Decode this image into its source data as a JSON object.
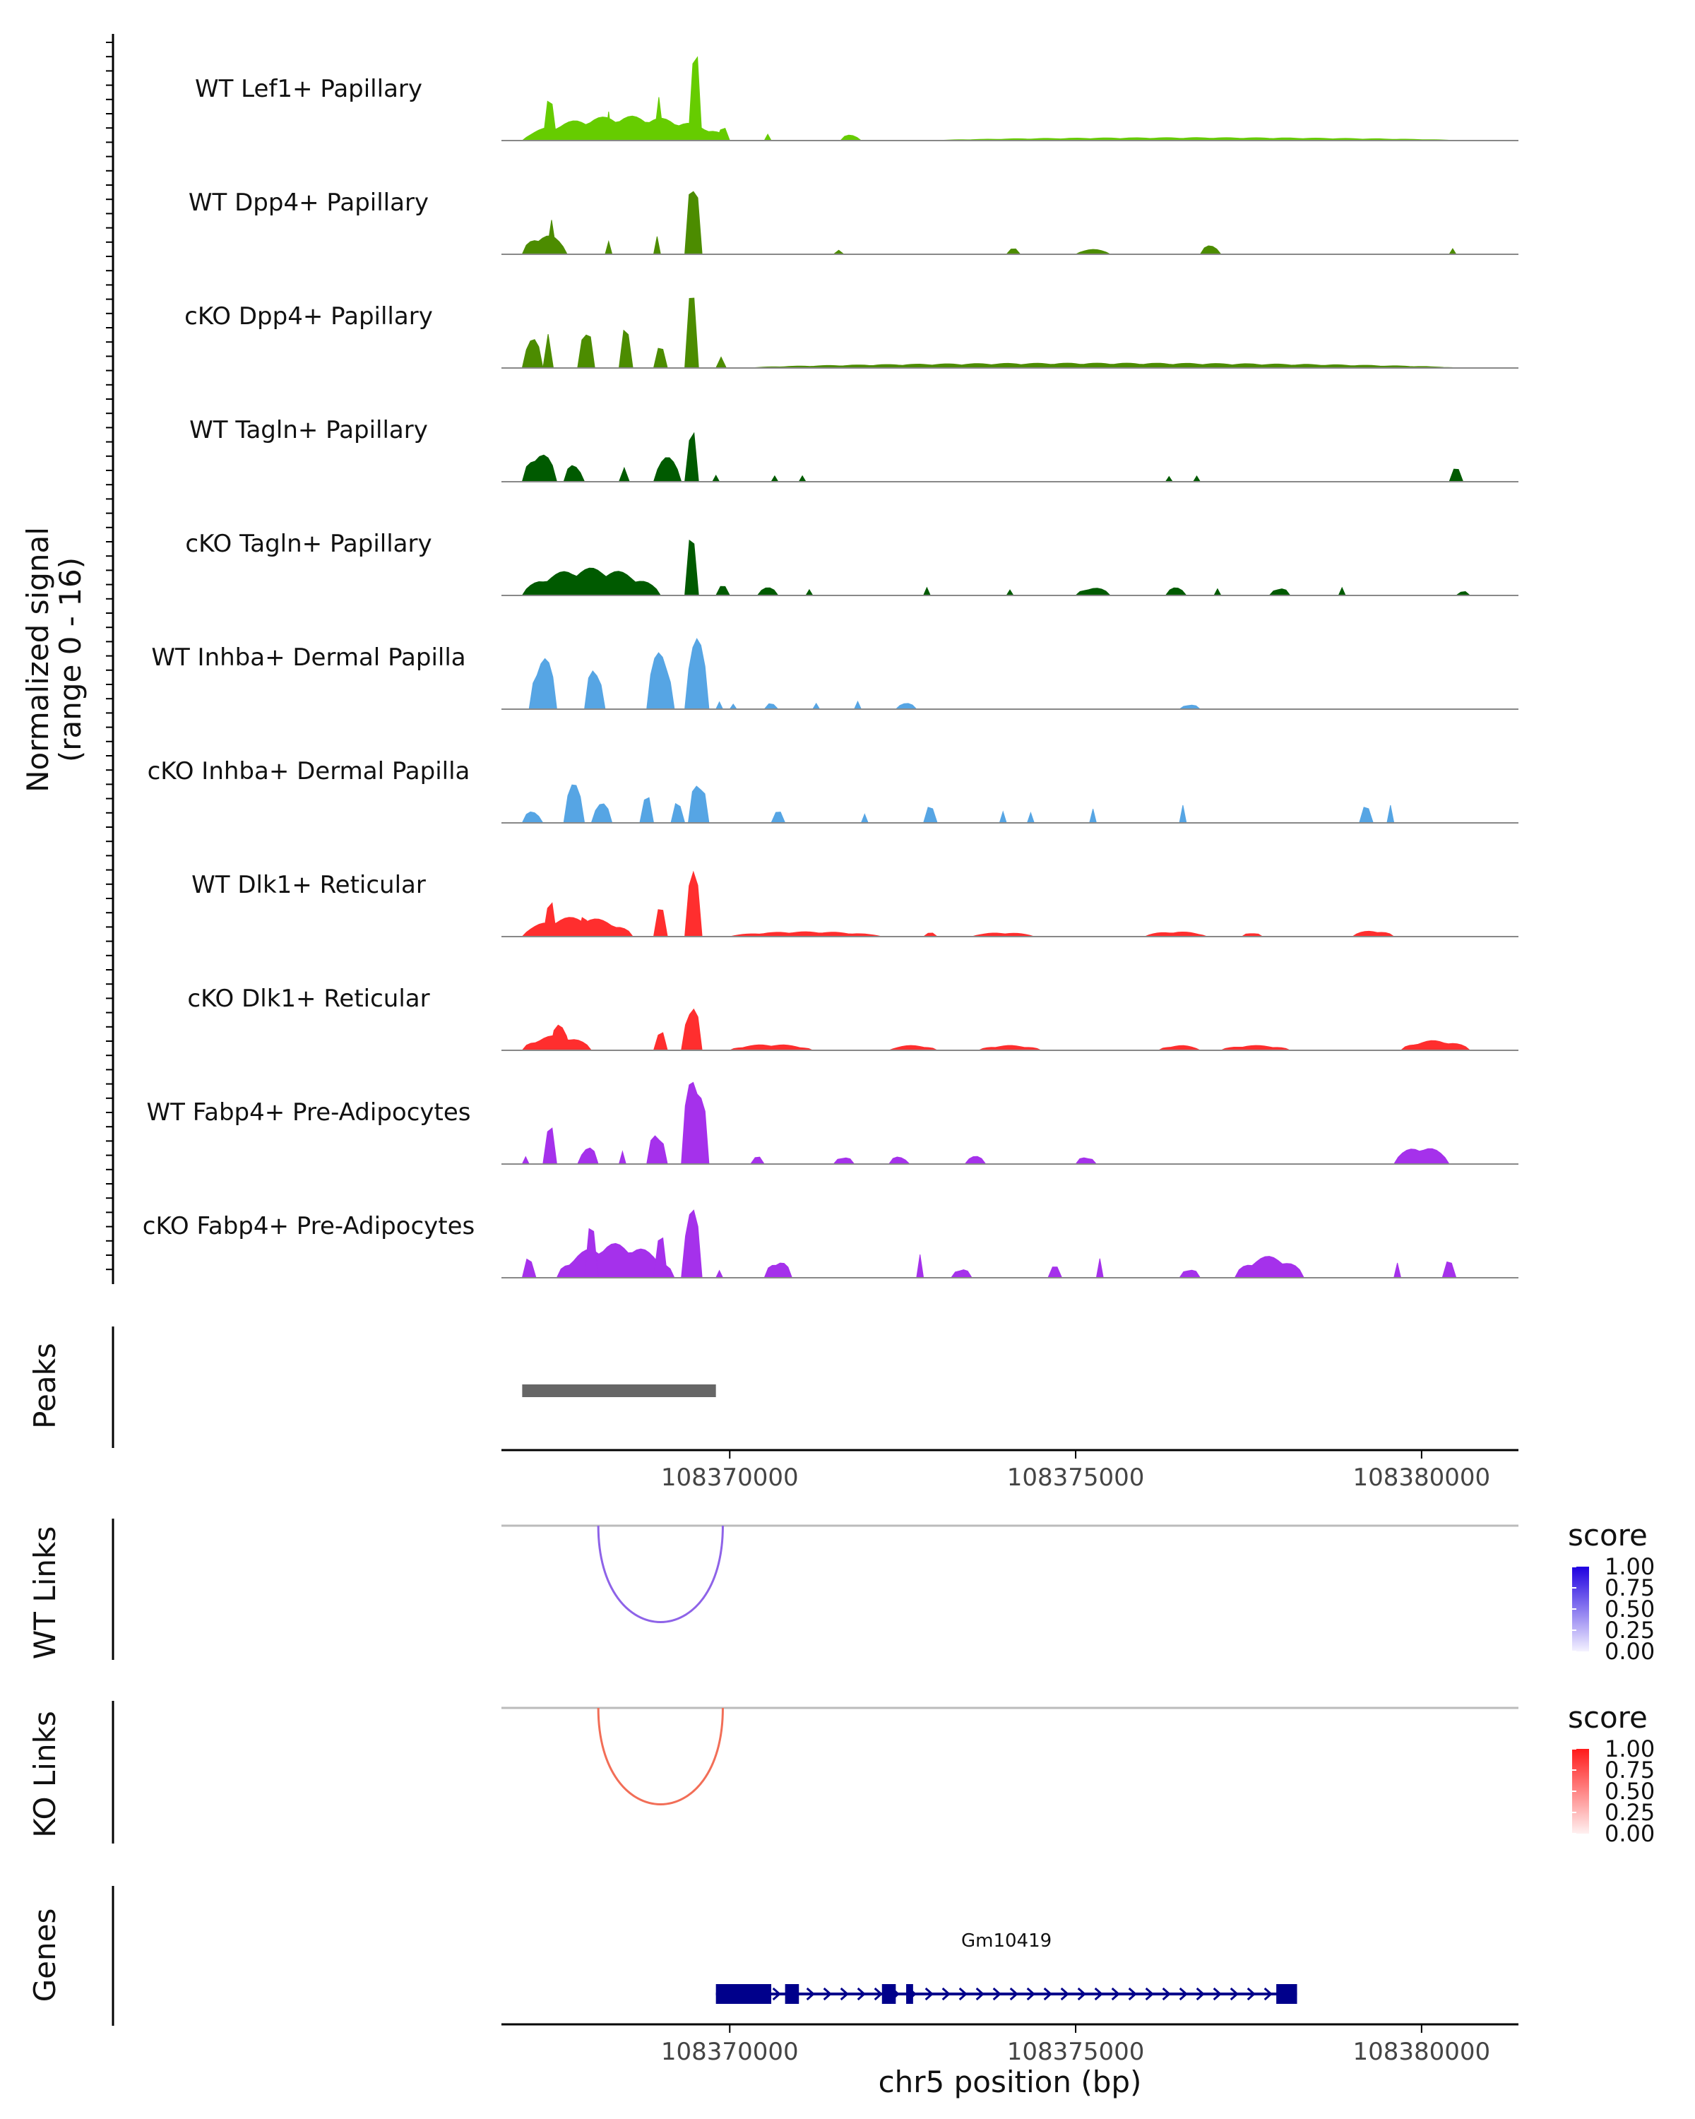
{
  "chart_data": {
    "type": "area",
    "title": "",
    "ylabel": "Normalized signal\n(range 0 - 16)",
    "ylim": [
      0,
      16
    ],
    "xlabel": "chr5 position (bp)",
    "xlim": [
      108366700,
      108381400
    ],
    "x_ticks": [
      108370000,
      108375000,
      108380000
    ],
    "x_tick_labels": [
      "108370000",
      "108375000",
      "108380000"
    ],
    "tracks": [
      {
        "name": "WT Lef1+ Papillary",
        "color": "#66CC00",
        "peaks": [
          [
            108367000,
            108370000,
            0.25
          ],
          [
            108367300,
            108367500,
            0.55
          ],
          [
            108368200,
            108368300,
            0.3
          ],
          [
            108368900,
            108369050,
            0.45
          ],
          [
            108369400,
            108369600,
            0.95
          ],
          [
            108369800,
            108370000,
            0.15
          ],
          [
            108370500,
            108370600,
            0.08
          ],
          [
            108371600,
            108371900,
            0.06
          ],
          [
            108373000,
            108380500,
            0.03
          ]
        ]
      },
      {
        "name": "WT Dpp4+ Papillary",
        "color": "#4C8C00",
        "peaks": [
          [
            108367000,
            108367650,
            0.2
          ],
          [
            108367350,
            108367500,
            0.35
          ],
          [
            108368200,
            108368300,
            0.15
          ],
          [
            108368900,
            108369000,
            0.25
          ],
          [
            108369350,
            108369600,
            0.88
          ],
          [
            108371500,
            108371650,
            0.05
          ],
          [
            108374000,
            108374200,
            0.06
          ],
          [
            108375000,
            108375500,
            0.05
          ],
          [
            108376800,
            108377100,
            0.09
          ],
          [
            108380400,
            108380500,
            0.06
          ]
        ]
      },
      {
        "name": "cKO Dpp4+ Papillary",
        "color": "#4C8C00",
        "peaks": [
          [
            108367000,
            108367300,
            0.3
          ],
          [
            108367300,
            108367450,
            0.45
          ],
          [
            108367800,
            108368050,
            0.45
          ],
          [
            108368400,
            108368600,
            0.45
          ],
          [
            108368900,
            108369100,
            0.22
          ],
          [
            108369350,
            108369550,
            0.78
          ],
          [
            108369800,
            108369950,
            0.12
          ],
          [
            108370300,
            108380500,
            0.05
          ]
        ]
      },
      {
        "name": "WT Tagln+ Papillary",
        "color": "#005A00",
        "peaks": [
          [
            108367000,
            108367500,
            0.3
          ],
          [
            108367600,
            108367900,
            0.18
          ],
          [
            108368400,
            108368550,
            0.15
          ],
          [
            108368900,
            108369300,
            0.25
          ],
          [
            108369350,
            108369550,
            0.65
          ],
          [
            108369750,
            108369850,
            0.08
          ],
          [
            108370600,
            108370700,
            0.06
          ],
          [
            108371000,
            108371100,
            0.06
          ],
          [
            108376300,
            108376400,
            0.06
          ],
          [
            108376700,
            108376800,
            0.06
          ],
          [
            108380400,
            108380600,
            0.14
          ]
        ]
      },
      {
        "name": "cKO Tagln+ Papillary",
        "color": "#005A00",
        "peaks": [
          [
            108367000,
            108369000,
            0.28
          ],
          [
            108369350,
            108369550,
            0.62
          ],
          [
            108369800,
            108370000,
            0.1
          ],
          [
            108370400,
            108370700,
            0.08
          ],
          [
            108371100,
            108371200,
            0.08
          ],
          [
            108372800,
            108372900,
            0.08
          ],
          [
            108374000,
            108374100,
            0.07
          ],
          [
            108375000,
            108375500,
            0.08
          ],
          [
            108376300,
            108376600,
            0.08
          ],
          [
            108377000,
            108377100,
            0.08
          ],
          [
            108377800,
            108378100,
            0.08
          ],
          [
            108378800,
            108378900,
            0.08
          ],
          [
            108380500,
            108380700,
            0.05
          ]
        ]
      },
      {
        "name": "WT Inhba+ Dermal Papilla",
        "color": "#56A5E4",
        "peaks": [
          [
            108367100,
            108367500,
            0.55
          ],
          [
            108367900,
            108368200,
            0.45
          ],
          [
            108368800,
            108369200,
            0.6
          ],
          [
            108369350,
            108369700,
            0.72
          ],
          [
            108369800,
            108369900,
            0.1
          ],
          [
            108370000,
            108370100,
            0.07
          ],
          [
            108370500,
            108370700,
            0.07
          ],
          [
            108371200,
            108371300,
            0.06
          ],
          [
            108371800,
            108371900,
            0.08
          ],
          [
            108372400,
            108372700,
            0.06
          ],
          [
            108376500,
            108376800,
            0.05
          ]
        ]
      },
      {
        "name": "cKO Inhba+ Dermal Papilla",
        "color": "#56A5E4",
        "peaks": [
          [
            108367000,
            108367300,
            0.12
          ],
          [
            108367600,
            108367900,
            0.4
          ],
          [
            108368000,
            108368300,
            0.2
          ],
          [
            108368700,
            108368900,
            0.35
          ],
          [
            108369150,
            108369350,
            0.25
          ],
          [
            108369400,
            108369700,
            0.48
          ],
          [
            108370600,
            108370800,
            0.12
          ],
          [
            108371900,
            108372000,
            0.12
          ],
          [
            108372800,
            108373000,
            0.18
          ],
          [
            108373900,
            108374000,
            0.12
          ],
          [
            108374300,
            108374400,
            0.12
          ],
          [
            108375200,
            108375300,
            0.18
          ],
          [
            108376500,
            108376600,
            0.18
          ],
          [
            108379100,
            108379300,
            0.18
          ],
          [
            108379500,
            108379600,
            0.18
          ]
        ]
      },
      {
        "name": "WT Dlk1+ Reticular",
        "color": "#FF2E2E",
        "peaks": [
          [
            108367000,
            108368600,
            0.2
          ],
          [
            108367300,
            108367500,
            0.45
          ],
          [
            108367800,
            108368000,
            0.25
          ],
          [
            108368900,
            108369100,
            0.3
          ],
          [
            108369350,
            108369600,
            0.66
          ],
          [
            108370000,
            108372200,
            0.05
          ],
          [
            108372800,
            108373000,
            0.04
          ],
          [
            108373500,
            108374400,
            0.04
          ],
          [
            108376000,
            108376900,
            0.05
          ],
          [
            108377400,
            108377700,
            0.04
          ],
          [
            108379000,
            108379600,
            0.06
          ]
        ]
      },
      {
        "name": "cKO Dlk1+ Reticular",
        "color": "#FF2E2E",
        "peaks": [
          [
            108367000,
            108368000,
            0.15
          ],
          [
            108367400,
            108367700,
            0.28
          ],
          [
            108368900,
            108369100,
            0.22
          ],
          [
            108369300,
            108369600,
            0.48
          ],
          [
            108370000,
            108371200,
            0.06
          ],
          [
            108372300,
            108373000,
            0.05
          ],
          [
            108373600,
            108374500,
            0.05
          ],
          [
            108376200,
            108376800,
            0.05
          ],
          [
            108377100,
            108378100,
            0.05
          ],
          [
            108379700,
            108380700,
            0.1
          ]
        ]
      },
      {
        "name": "WT Fabp4+ Pre-Adipocytes",
        "color": "#A531EB",
        "peaks": [
          [
            108367000,
            108367100,
            0.08
          ],
          [
            108367300,
            108367500,
            0.42
          ],
          [
            108367800,
            108368100,
            0.18
          ],
          [
            108368400,
            108368500,
            0.15
          ],
          [
            108368800,
            108369100,
            0.35
          ],
          [
            108369300,
            108369700,
            0.98
          ],
          [
            108370300,
            108370500,
            0.08
          ],
          [
            108371500,
            108371800,
            0.08
          ],
          [
            108372300,
            108372600,
            0.08
          ],
          [
            108373400,
            108373700,
            0.08
          ],
          [
            108375000,
            108375300,
            0.08
          ],
          [
            108379600,
            108380400,
            0.18
          ]
        ]
      },
      {
        "name": "cKO Fabp4+ Pre-Adipocytes",
        "color": "#A531EB",
        "peaks": [
          [
            108367000,
            108367200,
            0.25
          ],
          [
            108367500,
            108369200,
            0.35
          ],
          [
            108367900,
            108368100,
            0.55
          ],
          [
            108368900,
            108369100,
            0.45
          ],
          [
            108369300,
            108369600,
            0.72
          ],
          [
            108369800,
            108369900,
            0.1
          ],
          [
            108370500,
            108370900,
            0.18
          ],
          [
            108372700,
            108372800,
            0.32
          ],
          [
            108373200,
            108373500,
            0.1
          ],
          [
            108374600,
            108374800,
            0.12
          ],
          [
            108375300,
            108375400,
            0.22
          ],
          [
            108376500,
            108376800,
            0.1
          ],
          [
            108377300,
            108378300,
            0.22
          ],
          [
            108379600,
            108379700,
            0.18
          ],
          [
            108380300,
            108380500,
            0.18
          ]
        ]
      }
    ],
    "peaks_track": {
      "label": "Peaks",
      "ranges": [
        [
          108367000,
          108369800
        ]
      ],
      "color": "#666666"
    },
    "links": [
      {
        "label": "WT Links",
        "start": 108368100,
        "end": 108369900,
        "score": 0.6,
        "color": "#8E63E8",
        "legend": {
          "title": "score",
          "ticks": [
            "1.00",
            "0.75",
            "0.50",
            "0.25",
            "0.00"
          ],
          "high": "#1F00E0",
          "low": "#F4F2FF"
        }
      },
      {
        "label": "KO Links",
        "start": 108368100,
        "end": 108369900,
        "score": 0.6,
        "color": "#F26E57",
        "legend": {
          "title": "score",
          "ticks": [
            "1.00",
            "0.75",
            "0.50",
            "0.25",
            "0.00"
          ],
          "high": "#FF1A1A",
          "low": "#FFF1F1"
        }
      }
    ],
    "genes": {
      "label": "Genes",
      "items": [
        {
          "name": "Gm10419",
          "start": 108369800,
          "end": 108378200,
          "strand": "+",
          "color": "#00008B",
          "exons": [
            [
              108369800,
              108370600
            ],
            [
              108370800,
              108371000
            ],
            [
              108372200,
              108372400
            ],
            [
              108372550,
              108372650
            ],
            [
              108377900,
              108378200
            ]
          ]
        }
      ]
    }
  }
}
